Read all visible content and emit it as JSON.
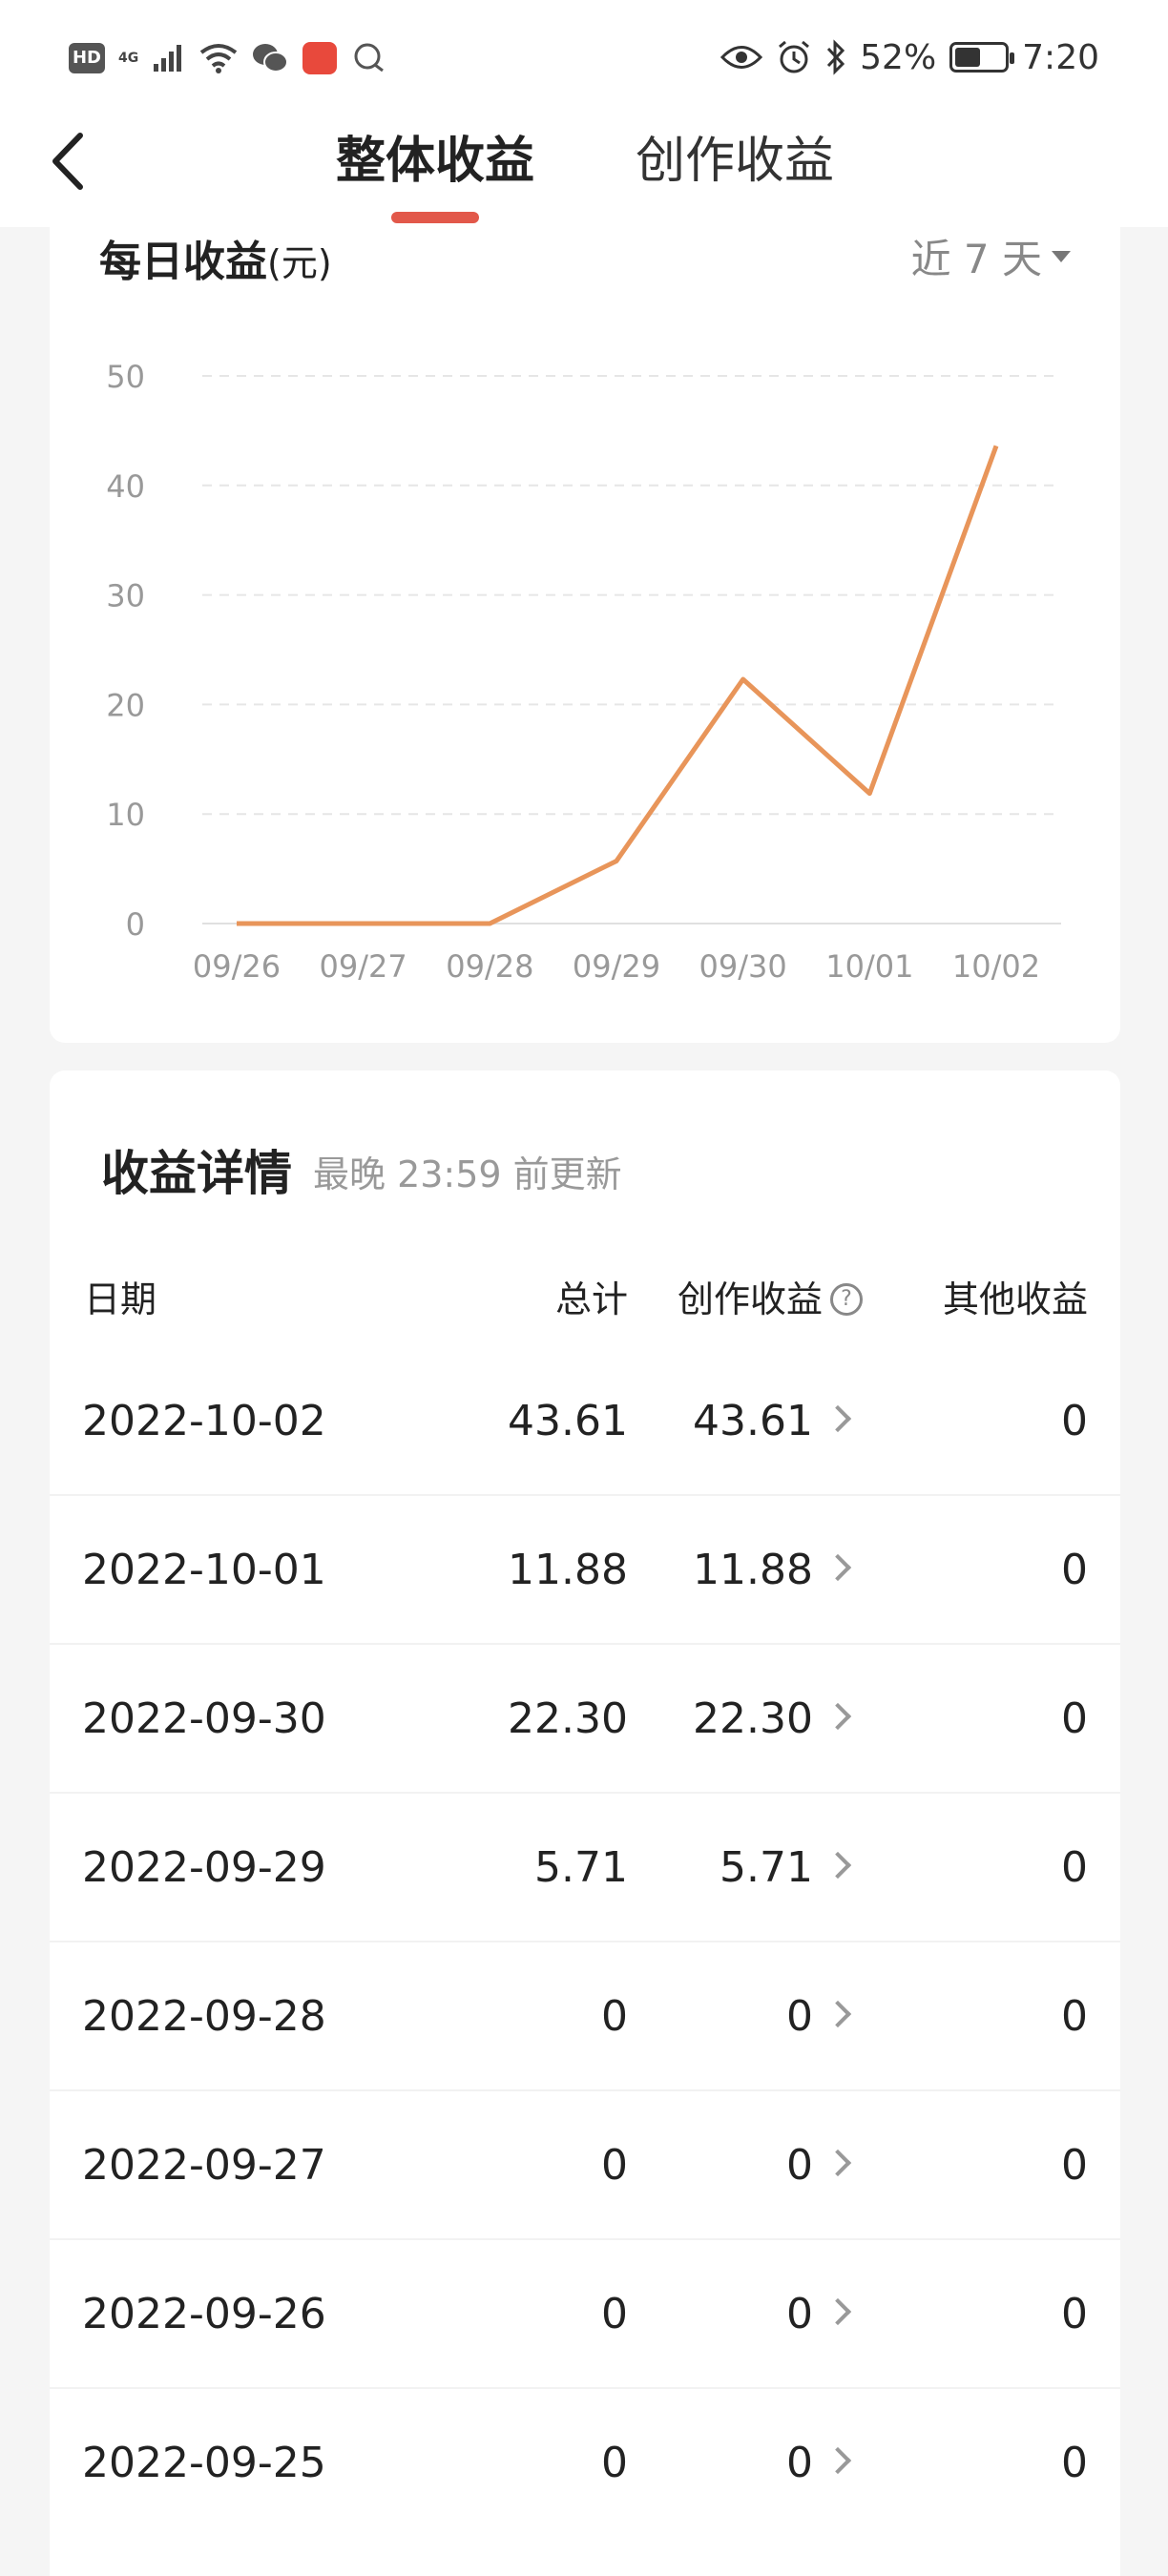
{
  "status_bar": {
    "hd": "HD",
    "network": "4G",
    "battery_percent": "52%",
    "battery_level": 0.52,
    "time": "7:20"
  },
  "nav": {
    "tabs": [
      {
        "label": "整体收益",
        "active": true
      },
      {
        "label": "创作收益",
        "active": false
      }
    ]
  },
  "chart_card": {
    "title": "每日收益",
    "unit": "(元)",
    "range_label": "近 7 天"
  },
  "chart_data": {
    "type": "line",
    "title": "每日收益(元)",
    "xlabel": "",
    "ylabel": "",
    "x": [
      "09/26",
      "09/27",
      "09/28",
      "09/29",
      "09/30",
      "10/01",
      "10/02"
    ],
    "series": [
      {
        "values": [
          0,
          0,
          0,
          5.71,
          22.3,
          11.88,
          43.61
        ]
      }
    ],
    "ylim": [
      0,
      50
    ],
    "yticks": [
      0,
      10,
      20,
      30,
      40,
      50
    ],
    "grid": true,
    "line_color": "#e8955a"
  },
  "details": {
    "title": "收益详情",
    "subtitle": "最晚 23:59 前更新",
    "headers": {
      "date": "日期",
      "total": "总计",
      "creation": "创作收益",
      "other": "其他收益"
    },
    "rows": [
      {
        "date": "2022-10-02",
        "total": "43.61",
        "creation": "43.61",
        "other": "0"
      },
      {
        "date": "2022-10-01",
        "total": "11.88",
        "creation": "11.88",
        "other": "0"
      },
      {
        "date": "2022-09-30",
        "total": "22.30",
        "creation": "22.30",
        "other": "0"
      },
      {
        "date": "2022-09-29",
        "total": "5.71",
        "creation": "5.71",
        "other": "0"
      },
      {
        "date": "2022-09-28",
        "total": "0",
        "creation": "0",
        "other": "0"
      },
      {
        "date": "2022-09-27",
        "total": "0",
        "creation": "0",
        "other": "0"
      },
      {
        "date": "2022-09-26",
        "total": "0",
        "creation": "0",
        "other": "0"
      },
      {
        "date": "2022-09-25",
        "total": "0",
        "creation": "0",
        "other": "0"
      }
    ]
  },
  "colors": {
    "accent": "#e2584a",
    "line": "#e8955a"
  }
}
